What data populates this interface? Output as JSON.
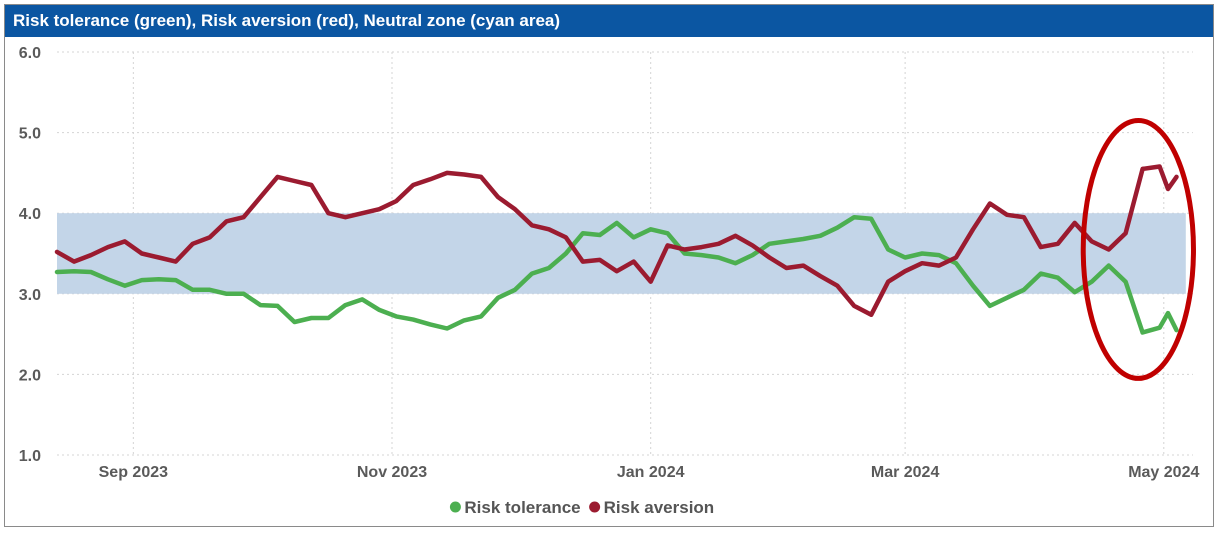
{
  "chart_data": {
    "type": "line",
    "title": "Risk tolerance (green), Risk aversion (red), Neutral zone (cyan area)",
    "ylim": [
      1.0,
      6.0
    ],
    "yticks": [
      "1.0",
      "2.0",
      "3.0",
      "4.0",
      "5.0",
      "6.0"
    ],
    "xlim": [
      "2023-08-14",
      "2024-05-06"
    ],
    "xticks": [
      {
        "date": "2023-09-01",
        "label": "Sep 2023"
      },
      {
        "date": "2023-11-01",
        "label": "Nov 2023"
      },
      {
        "date": "2024-01-01",
        "label": "Jan 2024"
      },
      {
        "date": "2024-03-01",
        "label": "Mar 2024"
      },
      {
        "date": "2024-05-01",
        "label": "May 2024"
      }
    ],
    "grid": true,
    "legend_position": "bottom",
    "neutral_zone": {
      "y_from": 3.0,
      "y_to": 4.0,
      "x_from": "2023-08-14",
      "x_to": "2024-05-01",
      "color": "#c3d5e8"
    },
    "highlight": {
      "shape": "ellipse",
      "color": "#c00000",
      "x_from": "2024-04-12",
      "x_to": "2024-05-08",
      "y_from": 1.95,
      "y_to": 5.15
    },
    "series": [
      {
        "name": "Risk tolerance",
        "color": "#4caf50",
        "points": [
          [
            "2023-08-14",
            3.27
          ],
          [
            "2023-08-18",
            3.28
          ],
          [
            "2023-08-22",
            3.27
          ],
          [
            "2023-08-26",
            3.18
          ],
          [
            "2023-08-30",
            3.1
          ],
          [
            "2023-09-03",
            3.17
          ],
          [
            "2023-09-07",
            3.18
          ],
          [
            "2023-09-11",
            3.17
          ],
          [
            "2023-09-15",
            3.05
          ],
          [
            "2023-09-19",
            3.05
          ],
          [
            "2023-09-23",
            3.0
          ],
          [
            "2023-09-27",
            3.0
          ],
          [
            "2023-10-01",
            2.86
          ],
          [
            "2023-10-05",
            2.85
          ],
          [
            "2023-10-09",
            2.65
          ],
          [
            "2023-10-13",
            2.7
          ],
          [
            "2023-10-17",
            2.7
          ],
          [
            "2023-10-21",
            2.86
          ],
          [
            "2023-10-25",
            2.93
          ],
          [
            "2023-10-29",
            2.8
          ],
          [
            "2023-11-02",
            2.72
          ],
          [
            "2023-11-06",
            2.68
          ],
          [
            "2023-11-10",
            2.62
          ],
          [
            "2023-11-14",
            2.57
          ],
          [
            "2023-11-18",
            2.67
          ],
          [
            "2023-11-22",
            2.72
          ],
          [
            "2023-11-26",
            2.95
          ],
          [
            "2023-11-30",
            3.05
          ],
          [
            "2023-12-04",
            3.25
          ],
          [
            "2023-12-08",
            3.32
          ],
          [
            "2023-12-12",
            3.5
          ],
          [
            "2023-12-16",
            3.75
          ],
          [
            "2023-12-20",
            3.73
          ],
          [
            "2023-12-24",
            3.88
          ],
          [
            "2023-12-28",
            3.7
          ],
          [
            "2024-01-01",
            3.8
          ],
          [
            "2024-01-05",
            3.75
          ],
          [
            "2024-01-09",
            3.5
          ],
          [
            "2024-01-13",
            3.48
          ],
          [
            "2024-01-17",
            3.45
          ],
          [
            "2024-01-21",
            3.38
          ],
          [
            "2024-01-25",
            3.48
          ],
          [
            "2024-01-29",
            3.62
          ],
          [
            "2024-02-02",
            3.65
          ],
          [
            "2024-02-06",
            3.68
          ],
          [
            "2024-02-10",
            3.72
          ],
          [
            "2024-02-14",
            3.82
          ],
          [
            "2024-02-18",
            3.95
          ],
          [
            "2024-02-22",
            3.93
          ],
          [
            "2024-02-26",
            3.55
          ],
          [
            "2024-03-01",
            3.45
          ],
          [
            "2024-03-05",
            3.5
          ],
          [
            "2024-03-09",
            3.48
          ],
          [
            "2024-03-13",
            3.38
          ],
          [
            "2024-03-17",
            3.1
          ],
          [
            "2024-03-21",
            2.85
          ],
          [
            "2024-03-25",
            2.95
          ],
          [
            "2024-03-29",
            3.05
          ],
          [
            "2024-04-02",
            3.25
          ],
          [
            "2024-04-06",
            3.2
          ],
          [
            "2024-04-10",
            3.02
          ],
          [
            "2024-04-14",
            3.15
          ],
          [
            "2024-04-18",
            3.35
          ],
          [
            "2024-04-22",
            3.15
          ],
          [
            "2024-04-26",
            2.52
          ],
          [
            "2024-04-30",
            2.58
          ],
          [
            "2024-05-02",
            2.76
          ],
          [
            "2024-05-04",
            2.55
          ]
        ]
      },
      {
        "name": "Risk aversion",
        "color": "#9b1b30",
        "points": [
          [
            "2023-08-14",
            3.52
          ],
          [
            "2023-08-18",
            3.4
          ],
          [
            "2023-08-22",
            3.48
          ],
          [
            "2023-08-26",
            3.58
          ],
          [
            "2023-08-30",
            3.65
          ],
          [
            "2023-09-03",
            3.5
          ],
          [
            "2023-09-07",
            3.45
          ],
          [
            "2023-09-11",
            3.4
          ],
          [
            "2023-09-15",
            3.62
          ],
          [
            "2023-09-19",
            3.7
          ],
          [
            "2023-09-23",
            3.9
          ],
          [
            "2023-09-27",
            3.95
          ],
          [
            "2023-10-01",
            4.2
          ],
          [
            "2023-10-05",
            4.45
          ],
          [
            "2023-10-09",
            4.4
          ],
          [
            "2023-10-13",
            4.35
          ],
          [
            "2023-10-17",
            4.0
          ],
          [
            "2023-10-21",
            3.95
          ],
          [
            "2023-10-25",
            4.0
          ],
          [
            "2023-10-29",
            4.05
          ],
          [
            "2023-11-02",
            4.15
          ],
          [
            "2023-11-06",
            4.35
          ],
          [
            "2023-11-10",
            4.42
          ],
          [
            "2023-11-14",
            4.5
          ],
          [
            "2023-11-18",
            4.48
          ],
          [
            "2023-11-22",
            4.45
          ],
          [
            "2023-11-26",
            4.2
          ],
          [
            "2023-11-30",
            4.05
          ],
          [
            "2023-12-04",
            3.85
          ],
          [
            "2023-12-08",
            3.8
          ],
          [
            "2023-12-12",
            3.7
          ],
          [
            "2023-12-16",
            3.4
          ],
          [
            "2023-12-20",
            3.42
          ],
          [
            "2023-12-24",
            3.28
          ],
          [
            "2023-12-28",
            3.4
          ],
          [
            "2024-01-01",
            3.15
          ],
          [
            "2024-01-05",
            3.6
          ],
          [
            "2024-01-09",
            3.55
          ],
          [
            "2024-01-13",
            3.58
          ],
          [
            "2024-01-17",
            3.62
          ],
          [
            "2024-01-21",
            3.72
          ],
          [
            "2024-01-25",
            3.6
          ],
          [
            "2024-01-29",
            3.45
          ],
          [
            "2024-02-02",
            3.32
          ],
          [
            "2024-02-06",
            3.35
          ],
          [
            "2024-02-10",
            3.22
          ],
          [
            "2024-02-14",
            3.1
          ],
          [
            "2024-02-18",
            2.85
          ],
          [
            "2024-02-22",
            2.74
          ],
          [
            "2024-02-26",
            3.15
          ],
          [
            "2024-03-01",
            3.28
          ],
          [
            "2024-03-05",
            3.38
          ],
          [
            "2024-03-09",
            3.35
          ],
          [
            "2024-03-13",
            3.45
          ],
          [
            "2024-03-17",
            3.8
          ],
          [
            "2024-03-21",
            4.12
          ],
          [
            "2024-03-25",
            3.98
          ],
          [
            "2024-03-29",
            3.95
          ],
          [
            "2024-04-02",
            3.58
          ],
          [
            "2024-04-06",
            3.62
          ],
          [
            "2024-04-10",
            3.88
          ],
          [
            "2024-04-14",
            3.65
          ],
          [
            "2024-04-18",
            3.55
          ],
          [
            "2024-04-22",
            3.75
          ],
          [
            "2024-04-26",
            4.55
          ],
          [
            "2024-04-30",
            4.58
          ],
          [
            "2024-05-02",
            4.3
          ],
          [
            "2024-05-04",
            4.45
          ]
        ]
      }
    ]
  }
}
